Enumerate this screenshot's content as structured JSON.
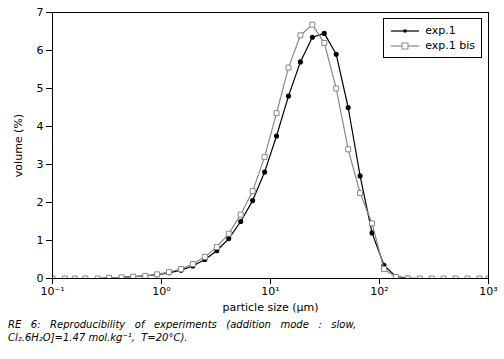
{
  "chart_data": {
    "type": "line",
    "xlabel": "particle size (μm)",
    "ylabel": "volume (%)",
    "log": "x",
    "xlim": [
      0.1,
      1000
    ],
    "xticks": [
      {
        "value": 0.1,
        "label": "10⁻¹"
      },
      {
        "value": 1,
        "label": "10⁰"
      },
      {
        "value": 10,
        "label": "10¹"
      },
      {
        "value": 100,
        "label": "10²"
      },
      {
        "value": 1000,
        "label": "10³"
      }
    ],
    "ylim": [
      0,
      7
    ],
    "yticks": [
      0,
      1,
      2,
      3,
      4,
      5,
      6,
      7
    ],
    "grid": false,
    "legend": "upper right",
    "x": [
      0.1,
      0.13,
      0.16,
      0.2,
      0.26,
      0.33,
      0.43,
      0.55,
      0.71,
      0.91,
      1.17,
      1.51,
      1.94,
      2.5,
      3.22,
      4.14,
      5.33,
      6.86,
      8.83,
      11.36,
      14.62,
      18.81,
      24.21,
      31.15,
      40.09,
      51.59,
      66.39,
      85.41,
      109.9,
      141.4,
      181.9,
      234.1,
      301.2,
      387.6,
      498.9,
      642.1,
      826.2,
      1000.0
    ],
    "series": [
      {
        "name": "exp.1",
        "color": "#000000",
        "marker": "dot",
        "values": [
          0.0,
          0.0,
          0.0,
          0.0,
          0.0,
          0.02,
          0.03,
          0.05,
          0.07,
          0.1,
          0.15,
          0.22,
          0.33,
          0.5,
          0.73,
          1.05,
          1.5,
          2.05,
          2.8,
          3.75,
          4.8,
          5.7,
          6.35,
          6.45,
          5.9,
          4.5,
          2.7,
          1.2,
          0.35,
          0.05,
          0.01,
          0.0,
          0.0,
          0.0,
          0.0,
          0.0,
          0.0,
          0.0
        ]
      },
      {
        "name": "exp.1 bis",
        "color": "#888888",
        "marker": "square",
        "values": [
          0.0,
          0.0,
          0.0,
          0.0,
          0.0,
          0.02,
          0.03,
          0.05,
          0.07,
          0.11,
          0.17,
          0.25,
          0.38,
          0.57,
          0.83,
          1.18,
          1.68,
          2.3,
          3.2,
          4.35,
          5.55,
          6.4,
          6.68,
          6.2,
          5.0,
          3.4,
          2.25,
          1.45,
          0.25,
          0.04,
          0.0,
          0.0,
          0.0,
          0.0,
          0.0,
          0.0,
          0.0,
          0.0
        ]
      }
    ],
    "annotations": [
      "RE   6:   Reproducibility   of   experiments   (addition   mode   :   slow,",
      "Cl₂.6H₂O]=1.47 mol.kg⁻¹,  T=20°C)."
    ]
  }
}
